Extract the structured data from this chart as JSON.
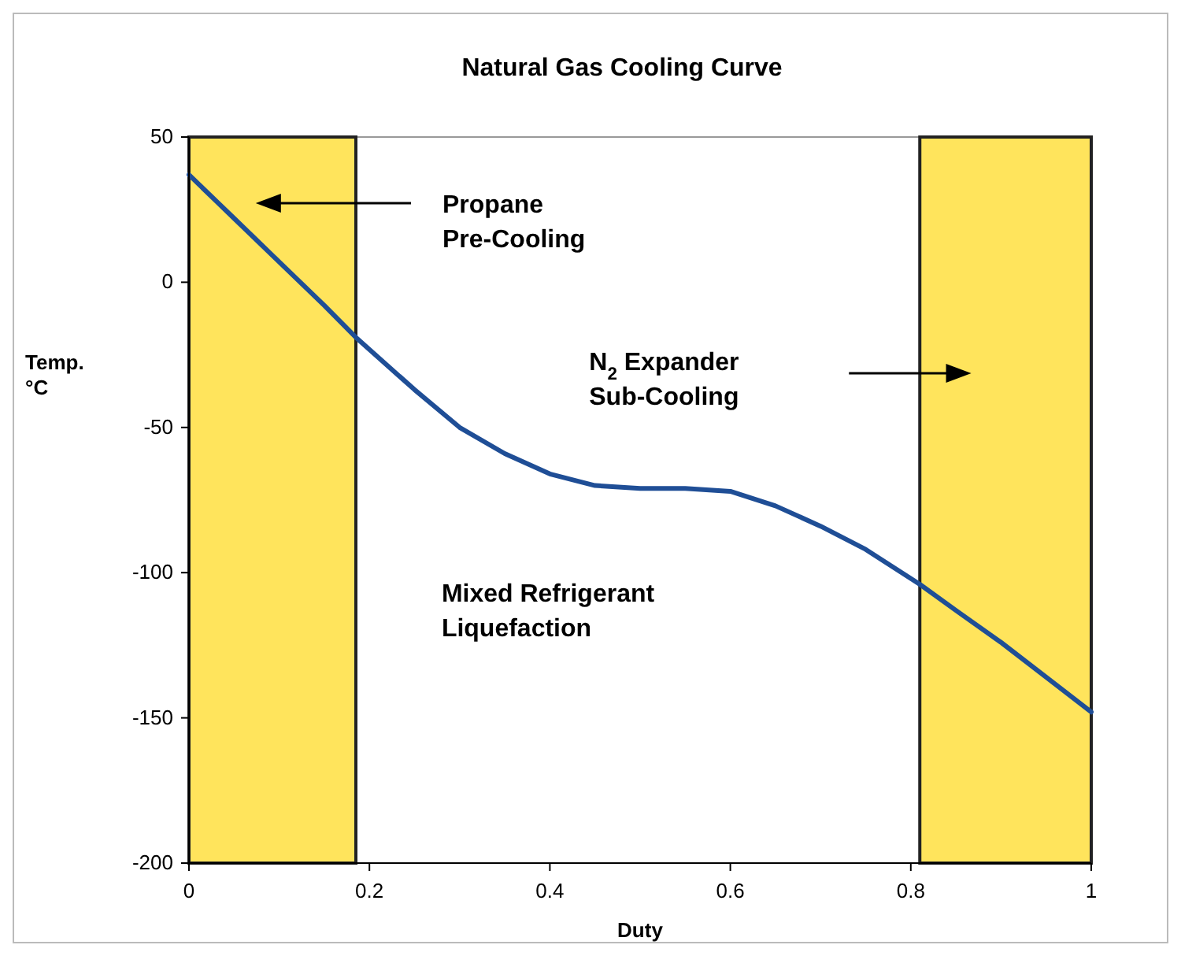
{
  "chart_data": {
    "type": "line",
    "title": "Natural Gas Cooling Curve",
    "xlabel": "Duty",
    "ylabel": "Temp. °C",
    "x": [
      0,
      0.05,
      0.1,
      0.15,
      0.185,
      0.25,
      0.3,
      0.35,
      0.4,
      0.45,
      0.5,
      0.55,
      0.6,
      0.65,
      0.7,
      0.75,
      0.81,
      0.85,
      0.9,
      0.95,
      1
    ],
    "series": [
      {
        "color": "#1f4e96",
        "values": [
          37,
          22,
          7,
          -8,
          -19,
          -37,
          -50,
          -59,
          -66,
          -70,
          -71,
          -71,
          -72,
          -77,
          -84,
          -92,
          -104,
          -113,
          -124,
          -136,
          -148
        ]
      }
    ],
    "xlim": [
      0,
      1
    ],
    "xticks": [
      0,
      0.2,
      0.4,
      0.6,
      0.8,
      1
    ],
    "ylim": [
      -200,
      50
    ],
    "yticks": [
      -200,
      -150,
      -100,
      -50,
      0,
      50
    ],
    "grid": false,
    "marker": "none",
    "line_style": "solid",
    "bands": [
      {
        "axis": "x",
        "from": 0,
        "to": 0.185,
        "color": "#ffe45c"
      },
      {
        "axis": "x",
        "from": 0.81,
        "to": 1,
        "color": "#ffe45c"
      }
    ],
    "annotations": [
      "Propane Pre-Cooling",
      "N$_{2}$ Expander Sub-Cooling",
      "Mixed Refrigerant Liquefaction"
    ]
  }
}
